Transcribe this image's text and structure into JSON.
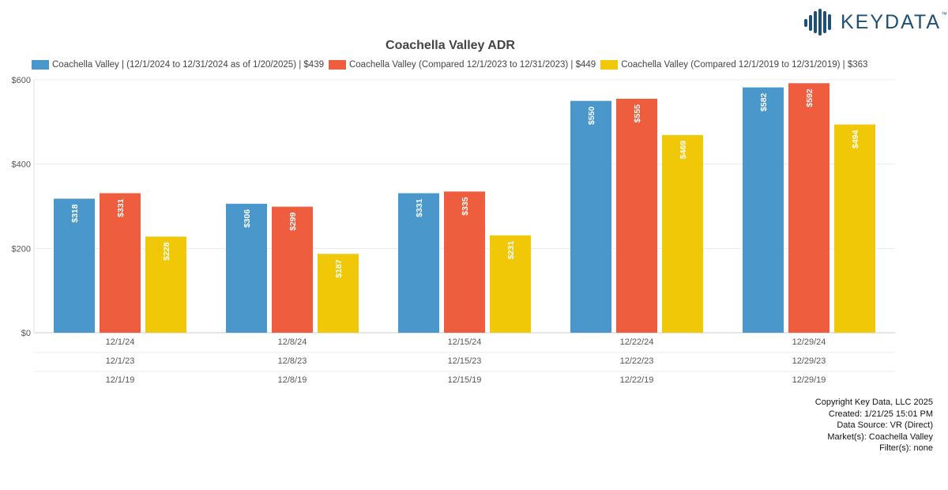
{
  "brand": {
    "logo_text": "KEYDATA",
    "logo_tm": "™"
  },
  "chart_data": {
    "type": "bar",
    "title": "Coachella Valley ADR",
    "categories": [
      [
        "12/1/24",
        "12/1/23",
        "12/1/19"
      ],
      [
        "12/8/24",
        "12/8/23",
        "12/8/19"
      ],
      [
        "12/15/24",
        "12/15/23",
        "12/15/19"
      ],
      [
        "12/22/24",
        "12/22/23",
        "12/22/19"
      ],
      [
        "12/29/24",
        "12/29/23",
        "12/29/19"
      ]
    ],
    "series": [
      {
        "name": "Coachella Valley | (12/1/2024 to 12/31/2024 as of 1/20/2025) | $439",
        "color": "#4a97cb",
        "values": [
          318,
          306,
          331,
          550,
          582
        ],
        "labels": [
          "$318",
          "$306",
          "$331",
          "$550",
          "$582"
        ]
      },
      {
        "name": "Coachella Valley (Compared 12/1/2023 to 12/31/2023) | $449",
        "color": "#ef5d3f",
        "values": [
          331,
          299,
          335,
          555,
          592
        ],
        "labels": [
          "$331",
          "$299",
          "$335",
          "$555",
          "$592"
        ]
      },
      {
        "name": "Coachella Valley (Compared 12/1/2019 to 12/31/2019) | $363",
        "color": "#f0c808",
        "values": [
          228,
          187,
          231,
          469,
          494
        ],
        "labels": [
          "$228",
          "$187",
          "$231",
          "$469",
          "$494"
        ]
      }
    ],
    "ylim": [
      0,
      600
    ],
    "yticks": [
      0,
      200,
      400,
      600
    ],
    "ytick_labels": [
      "$0",
      "$200",
      "$400",
      "$600"
    ],
    "grid": true,
    "legend_position": "top"
  },
  "footer": {
    "lines": [
      "Copyright Key Data, LLC 2025",
      "Created: 1/21/25 15:01 PM",
      "Data Source: VR (Direct)",
      "Market(s):  Coachella Valley",
      "Filter(s): none"
    ]
  }
}
